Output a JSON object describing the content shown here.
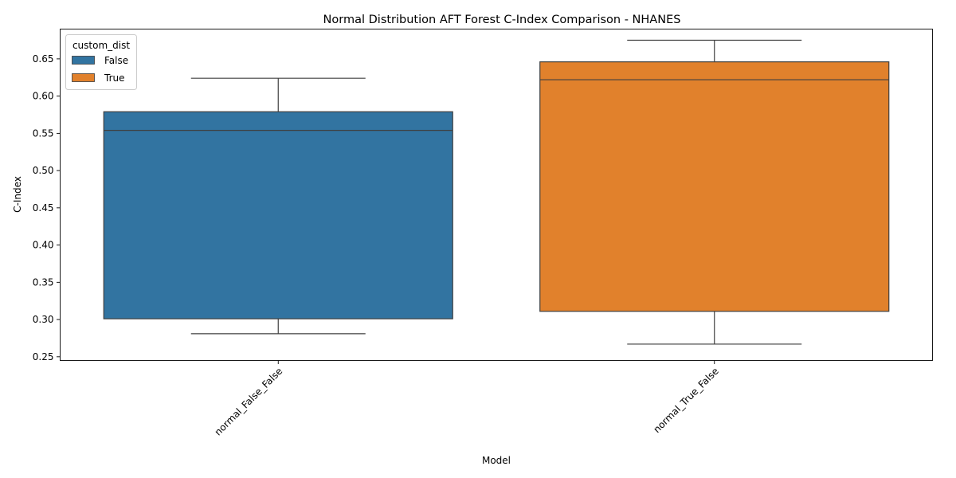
{
  "chart_data": {
    "type": "box",
    "title": "Normal Distribution AFT Forest C-Index Comparison - NHANES",
    "xlabel": "Model",
    "ylabel": "C-Index",
    "ylim": [
      0.245,
      0.69
    ],
    "yticks": [
      0.25,
      0.3,
      0.35,
      0.4,
      0.45,
      0.5,
      0.55,
      0.6,
      0.65
    ],
    "ytick_labels": [
      "0.25",
      "0.30",
      "0.35",
      "0.40",
      "0.45",
      "0.50",
      "0.55",
      "0.60",
      "0.65"
    ],
    "categories": [
      "normal_False_False",
      "normal_True_False"
    ],
    "legend": {
      "title": "custom_dist",
      "placement": "top-left",
      "entries": [
        "False",
        "True"
      ]
    },
    "grid": false,
    "series": [
      {
        "name": "False",
        "color": "#3274a1",
        "category": "normal_False_False",
        "whisker_low": 0.281,
        "q1": 0.301,
        "median": 0.554,
        "q3": 0.579,
        "whisker_high": 0.624
      },
      {
        "name": "True",
        "color": "#e1812c",
        "category": "normal_True_False",
        "whisker_low": 0.267,
        "q1": 0.311,
        "median": 0.622,
        "q3": 0.646,
        "whisker_high": 0.675
      }
    ]
  }
}
